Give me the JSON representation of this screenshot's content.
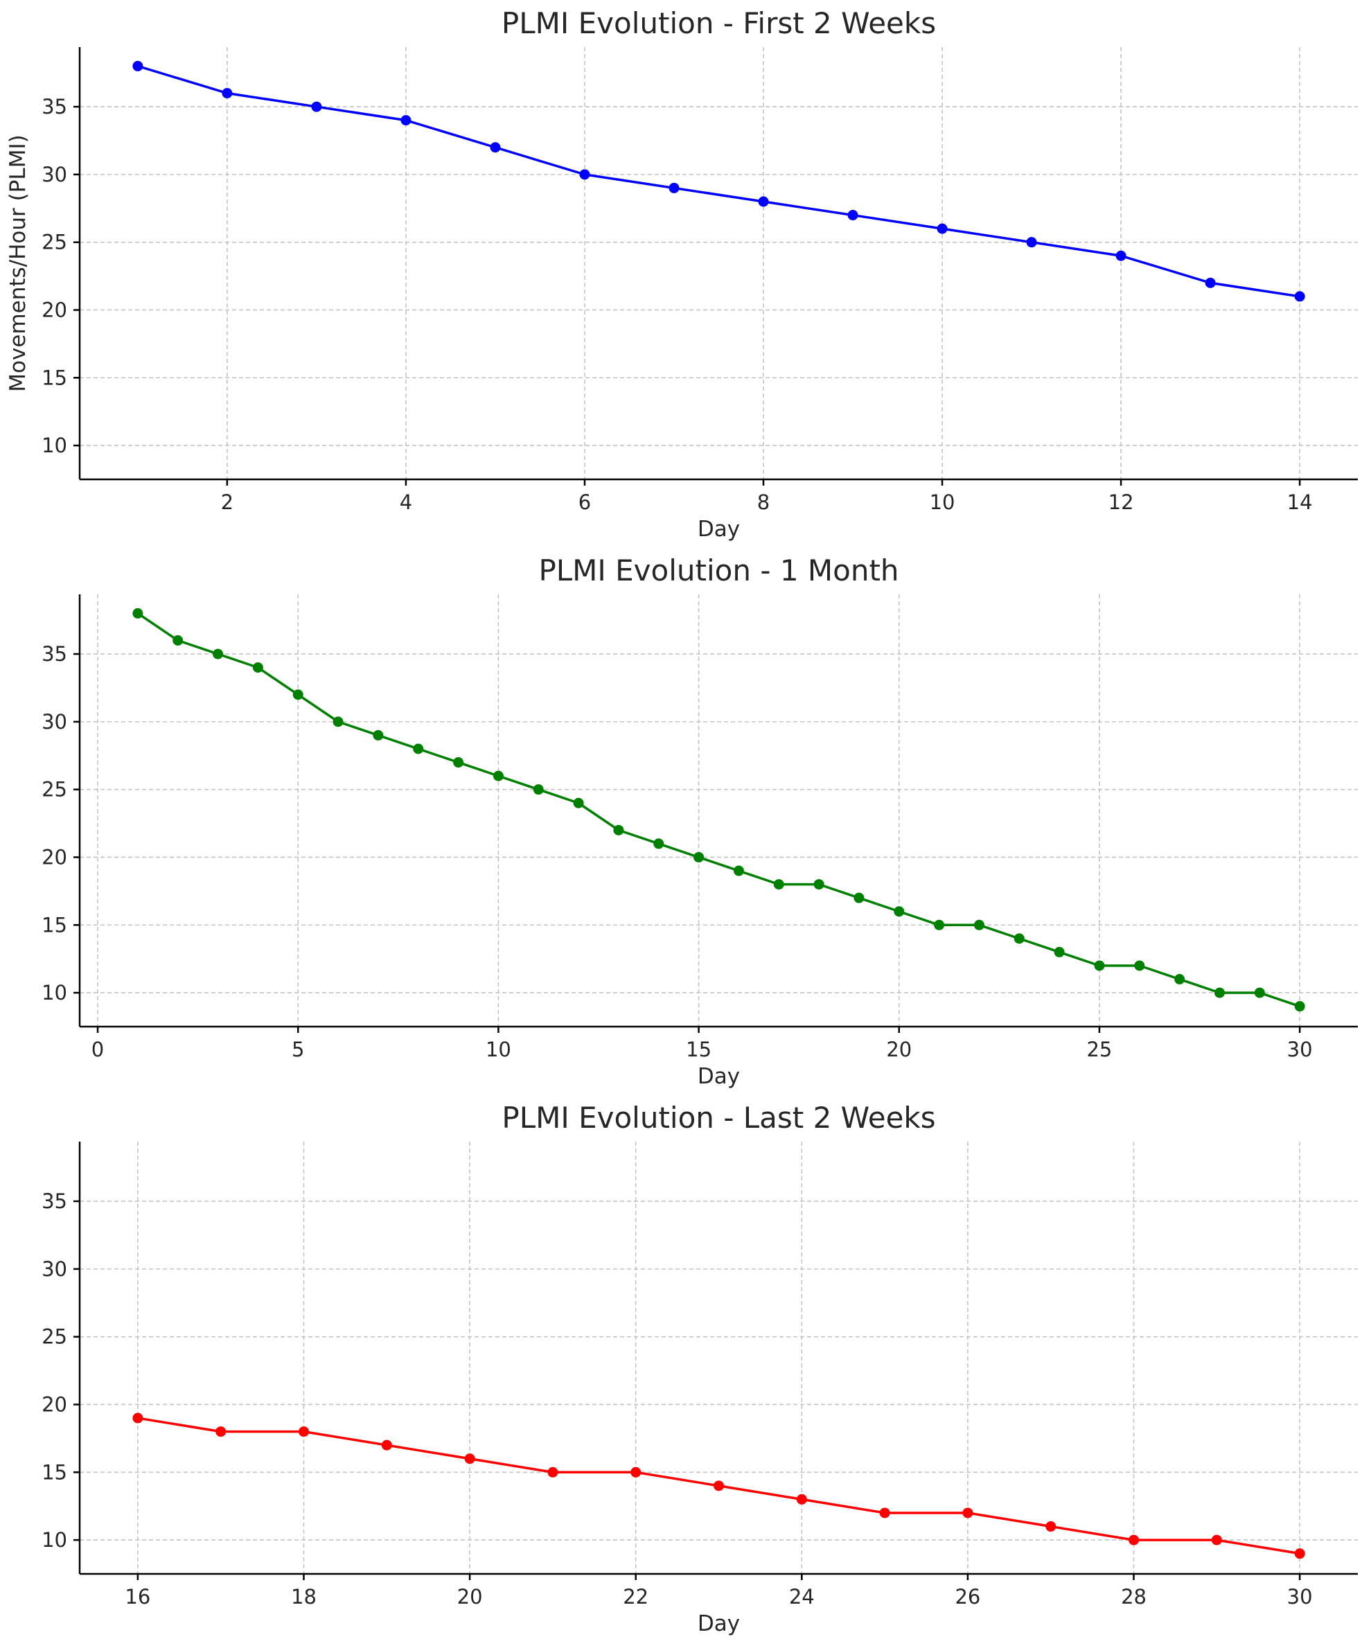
{
  "chart_data": [
    {
      "type": "line",
      "title": "PLMI Evolution - First 2 Weeks",
      "xlabel": "Day",
      "ylabel": "Movements/Hour (PLMI)",
      "xlim": [
        0.35,
        14.65
      ],
      "ylim": [
        7.5,
        39.4
      ],
      "xticks": [
        2,
        4,
        6,
        8,
        10,
        12,
        14
      ],
      "yticks": [
        10,
        15,
        20,
        25,
        30,
        35
      ],
      "grid": true,
      "color": "#0000ff",
      "x": [
        1,
        2,
        3,
        4,
        5,
        6,
        7,
        8,
        9,
        10,
        11,
        12,
        13,
        14
      ],
      "y": [
        38,
        36,
        35,
        34,
        32,
        30,
        29,
        28,
        27,
        26,
        25,
        24,
        22,
        21
      ]
    },
    {
      "type": "line",
      "title": "PLMI Evolution - 1 Month",
      "xlabel": "Day",
      "ylabel": "",
      "xlim": [
        -0.45,
        31.45
      ],
      "ylim": [
        7.5,
        39.4
      ],
      "xticks": [
        0,
        5,
        10,
        15,
        20,
        25,
        30
      ],
      "yticks": [
        10,
        15,
        20,
        25,
        30,
        35
      ],
      "grid": true,
      "color": "#008000",
      "x": [
        1,
        2,
        3,
        4,
        5,
        6,
        7,
        8,
        9,
        10,
        11,
        12,
        13,
        14,
        15,
        16,
        17,
        18,
        19,
        20,
        21,
        22,
        23,
        24,
        25,
        26,
        27,
        28,
        29,
        30
      ],
      "y": [
        38,
        36,
        35,
        34,
        32,
        30,
        29,
        28,
        27,
        26,
        25,
        24,
        22,
        21,
        20,
        19,
        18,
        18,
        17,
        16,
        15,
        15,
        14,
        13,
        12,
        12,
        11,
        10,
        10,
        9
      ]
    },
    {
      "type": "line",
      "title": "PLMI Evolution - Last 2 Weeks",
      "xlabel": "Day",
      "ylabel": "",
      "xlim": [
        15.3,
        30.7
      ],
      "ylim": [
        7.5,
        39.4
      ],
      "xticks": [
        16,
        18,
        20,
        22,
        24,
        26,
        28,
        30
      ],
      "yticks": [
        10,
        15,
        20,
        25,
        30,
        35
      ],
      "grid": true,
      "color": "#ff0000",
      "x": [
        16,
        17,
        18,
        19,
        20,
        21,
        22,
        23,
        24,
        25,
        26,
        27,
        28,
        29,
        30
      ],
      "y": [
        19,
        18,
        18,
        17,
        16,
        15,
        15,
        14,
        13,
        12,
        12,
        11,
        10,
        10,
        9
      ]
    }
  ]
}
